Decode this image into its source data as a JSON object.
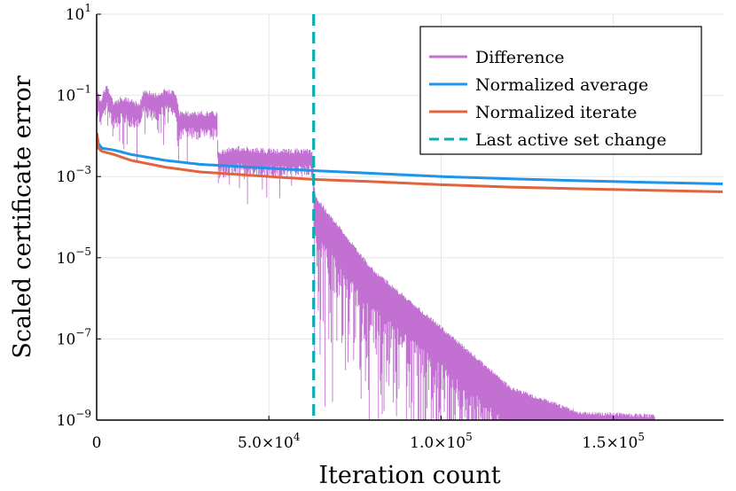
{
  "chart_data": {
    "type": "line",
    "xlabel": "Iteration count",
    "ylabel": "Scaled certificate error",
    "xlim": [
      0,
      182000
    ],
    "ylim": [
      1e-09,
      10
    ],
    "yscale": "log",
    "grid": true,
    "x_ticks": [
      {
        "value": 0,
        "label": "0",
        "exp": ""
      },
      {
        "value": 50000,
        "label": "5.0×10",
        "exp": "4"
      },
      {
        "value": 100000,
        "label": "1.0×10",
        "exp": "5"
      },
      {
        "value": 150000,
        "label": "1.5×10",
        "exp": "5"
      }
    ],
    "y_ticks": [
      {
        "value": 1e-09,
        "base": "10",
        "exp": "−9"
      },
      {
        "value": 1e-07,
        "base": "10",
        "exp": "−7"
      },
      {
        "value": 1e-05,
        "base": "10",
        "exp": "−5"
      },
      {
        "value": 0.001,
        "base": "10",
        "exp": "−3"
      },
      {
        "value": 0.1,
        "base": "10",
        "exp": "−1"
      },
      {
        "value": 10,
        "base": "10",
        "exp": "1"
      }
    ],
    "legend_position": "top-right",
    "active_set_change_x": 63000,
    "series": [
      {
        "name": "Difference",
        "color": "#c271d2",
        "style": "noisy",
        "points": [
          [
            0,
            0.03
          ],
          [
            300,
            0.1
          ],
          [
            1000,
            0.05
          ],
          [
            3000,
            0.12
          ],
          [
            5000,
            0.04
          ],
          [
            7000,
            0.06
          ],
          [
            10000,
            0.05
          ],
          [
            12500,
            0.04
          ],
          [
            13500,
            0.09
          ],
          [
            17000,
            0.07
          ],
          [
            20000,
            0.09
          ],
          [
            23000,
            0.08
          ],
          [
            24000,
            0.025
          ],
          [
            30000,
            0.025
          ],
          [
            35000,
            0.025
          ],
          [
            35200,
            0.0026
          ],
          [
            40000,
            0.0035
          ],
          [
            50000,
            0.003
          ],
          [
            62500,
            0.003
          ],
          [
            63500,
            0.00025
          ],
          [
            68000,
            8e-05
          ],
          [
            80000,
            4e-06
          ],
          [
            100000,
            1.5e-07
          ],
          [
            120000,
            5e-09
          ],
          [
            140000,
            1.2e-09
          ],
          [
            162000,
            1e-09
          ]
        ]
      },
      {
        "name": "Normalized average",
        "color": "#1f94e8",
        "style": "smooth",
        "points": [
          [
            0,
            0.012
          ],
          [
            500,
            0.0065
          ],
          [
            1500,
            0.005
          ],
          [
            5000,
            0.0045
          ],
          [
            10000,
            0.0035
          ],
          [
            20000,
            0.0025
          ],
          [
            30000,
            0.002
          ],
          [
            50000,
            0.0016
          ],
          [
            63000,
            0.0014
          ],
          [
            80000,
            0.0012
          ],
          [
            100000,
            0.001
          ],
          [
            120000,
            0.00088
          ],
          [
            140000,
            0.00079
          ],
          [
            160000,
            0.00072
          ],
          [
            182000,
            0.00066
          ]
        ]
      },
      {
        "name": "Normalized iterate",
        "color": "#e0643e",
        "style": "smooth",
        "points": [
          [
            0,
            0.012
          ],
          [
            500,
            0.005
          ],
          [
            1500,
            0.0042
          ],
          [
            5000,
            0.0035
          ],
          [
            10000,
            0.0025
          ],
          [
            20000,
            0.0017
          ],
          [
            30000,
            0.0013
          ],
          [
            50000,
            0.001
          ],
          [
            63000,
            0.00085
          ],
          [
            80000,
            0.00075
          ],
          [
            100000,
            0.00063
          ],
          [
            120000,
            0.00055
          ],
          [
            140000,
            0.0005
          ],
          [
            160000,
            0.00046
          ],
          [
            182000,
            0.00042
          ]
        ]
      },
      {
        "name": "Last active set change",
        "color": "#0aacae",
        "style": "dashed-vertical",
        "x": 63000
      }
    ]
  }
}
